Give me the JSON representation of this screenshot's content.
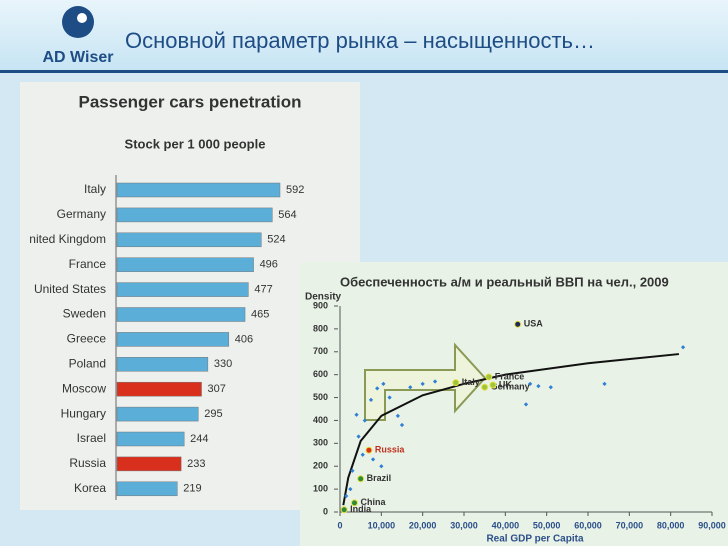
{
  "header": {
    "logo": "AD Wiser",
    "title": "Основной параметр рынка – насыщенность…"
  },
  "chart_data": [
    {
      "type": "hbar",
      "title": "Passenger cars penetration",
      "subtitle": "Stock per 1 000 people",
      "categories": [
        "Italy",
        "Germany",
        "nited Kingdom",
        "France",
        "United States",
        "Sweden",
        "Greece",
        "Poland",
        "Moscow",
        "Hungary",
        "Israel",
        "Russia",
        "Korea"
      ],
      "values": [
        592,
        564,
        524,
        496,
        477,
        465,
        406,
        330,
        307,
        295,
        244,
        233,
        219
      ],
      "colors": [
        "#5aaed8",
        "#5aaed8",
        "#5aaed8",
        "#5aaed8",
        "#5aaed8",
        "#5aaed8",
        "#5aaed8",
        "#5aaed8",
        "#d9301e",
        "#5aaed8",
        "#5aaed8",
        "#d9301e",
        "#5aaed8"
      ]
    },
    {
      "type": "scatter",
      "title": "Обеспеченность а/м и реальный ВВП на чел., 2009",
      "ylabel": "Density",
      "xlabel": "Real GDP per Capita",
      "xlim": [
        0,
        90000
      ],
      "ylim": [
        0,
        900
      ],
      "xticks": [
        0,
        {
          "value": 10000,
          "label": "10,000"
        },
        {
          "value": 20000,
          "label": "20,000"
        },
        {
          "value": 30000,
          "label": "30,000"
        },
        {
          "value": 40000,
          "label": "40,000"
        },
        {
          "value": 50000,
          "label": "50,000"
        },
        {
          "value": 60000,
          "label": "60,000"
        },
        {
          "value": 70000,
          "label": "70,000"
        },
        {
          "value": 80000,
          "label": "80,000"
        },
        {
          "value": 90000,
          "label": "90,000"
        }
      ],
      "yticks": [
        0,
        100,
        200,
        300,
        400,
        500,
        600,
        700,
        800,
        900
      ],
      "series": [
        {
          "color": "#2f7fd6",
          "x": [
            4000,
            5500,
            7500,
            9000,
            10500,
            12000,
            14000,
            15000,
            17000,
            20000,
            23000,
            3000,
            4500,
            6000,
            8000,
            10000,
            45000,
            46000,
            48000,
            51000,
            64000,
            83000,
            2500,
            1500
          ],
          "values": [
            425,
            250,
            490,
            540,
            560,
            500,
            420,
            380,
            545,
            560,
            570,
            180,
            330,
            400,
            230,
            200,
            470,
            560,
            550,
            545,
            560,
            720,
            100,
            70
          ]
        },
        {
          "labels": [
            "USA",
            "France",
            "Italy",
            "Germany",
            "UK",
            "Russia",
            "Brazil",
            "China",
            "India"
          ],
          "x": [
            43000,
            36000,
            28000,
            35000,
            37000,
            7000,
            5000,
            3500,
            1000
          ],
          "values": [
            820,
            590,
            565,
            545,
            555,
            270,
            145,
            40,
            10
          ],
          "colors": [
            "#1f2a5a",
            "#9ac53c",
            "#9ac53c",
            "#9ac53c",
            "#9ac53c",
            "#d9301e",
            "#2e8b3a",
            "#2e8b3a",
            "#2e8b3a"
          ]
        }
      ],
      "trend": {
        "x": [
          800,
          2000,
          5000,
          10000,
          20000,
          30000,
          40000,
          60000,
          82000
        ],
        "y": [
          30,
          150,
          310,
          420,
          510,
          560,
          600,
          650,
          690
        ]
      }
    }
  ]
}
